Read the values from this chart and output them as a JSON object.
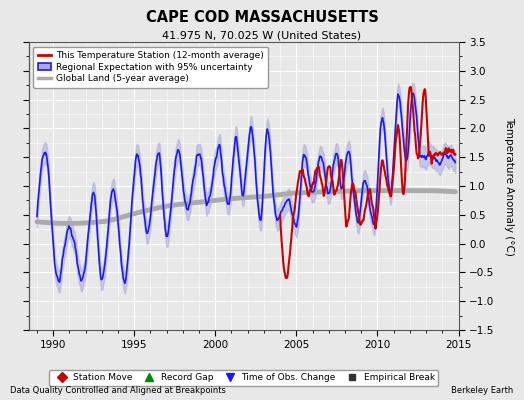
{
  "title": "CAPE COD MASSACHUSETTS",
  "subtitle": "41.975 N, 70.025 W (United States)",
  "xlabel_left": "Data Quality Controlled and Aligned at Breakpoints",
  "xlabel_right": "Berkeley Earth",
  "ylabel": "Temperature Anomaly (°C)",
  "xlim": [
    1988.5,
    2015.0
  ],
  "ylim": [
    -1.5,
    3.5
  ],
  "yticks": [
    -1.5,
    -1.0,
    -0.5,
    0.0,
    0.5,
    1.0,
    1.5,
    2.0,
    2.5,
    3.0,
    3.5
  ],
  "xticks": [
    1990,
    1995,
    2000,
    2005,
    2010,
    2015
  ],
  "background_color": "#e8e8e8",
  "plot_background": "#e8e8e8",
  "grid_color": "#ffffff",
  "red_line_color": "#cc0000",
  "blue_line_color": "#1a1aee",
  "blue_fill_color": "#aaaadd",
  "gray_line_color": "#aaaaaa",
  "legend_items": [
    "This Temperature Station (12-month average)",
    "Regional Expectation with 95% uncertainty",
    "Global Land (5-year average)"
  ],
  "bottom_legend": [
    {
      "marker": "D",
      "color": "#cc0000",
      "label": "Station Move"
    },
    {
      "marker": "^",
      "color": "#008800",
      "label": "Record Gap"
    },
    {
      "marker": "v",
      "color": "#1a1aee",
      "label": "Time of Obs. Change"
    },
    {
      "marker": "s",
      "color": "#333333",
      "label": "Empirical Break"
    }
  ],
  "blue_key_points": [
    [
      1989.0,
      0.45
    ],
    [
      1989.5,
      1.6
    ],
    [
      1990.3,
      -0.65
    ],
    [
      1991.0,
      0.3
    ],
    [
      1991.8,
      -0.65
    ],
    [
      1992.5,
      0.85
    ],
    [
      1993.0,
      -0.65
    ],
    [
      1993.7,
      1.0
    ],
    [
      1994.4,
      -0.65
    ],
    [
      1995.2,
      1.55
    ],
    [
      1995.8,
      0.2
    ],
    [
      1996.5,
      1.55
    ],
    [
      1997.0,
      0.15
    ],
    [
      1997.7,
      1.6
    ],
    [
      1998.3,
      0.6
    ],
    [
      1999.0,
      1.6
    ],
    [
      1999.5,
      0.7
    ],
    [
      2000.2,
      1.65
    ],
    [
      2000.8,
      0.7
    ],
    [
      2001.3,
      1.85
    ],
    [
      2001.7,
      0.85
    ],
    [
      2002.2,
      2.0
    ],
    [
      2002.8,
      0.45
    ],
    [
      2003.2,
      1.95
    ],
    [
      2003.8,
      0.45
    ],
    [
      2004.5,
      0.75
    ],
    [
      2005.0,
      0.3
    ],
    [
      2005.5,
      1.6
    ],
    [
      2006.0,
      0.85
    ],
    [
      2006.5,
      1.55
    ],
    [
      2007.0,
      0.9
    ],
    [
      2007.5,
      1.55
    ],
    [
      2007.8,
      0.9
    ],
    [
      2008.2,
      1.6
    ],
    [
      2008.8,
      0.35
    ],
    [
      2009.2,
      1.1
    ],
    [
      2009.8,
      0.35
    ],
    [
      2010.3,
      2.2
    ],
    [
      2010.8,
      0.9
    ],
    [
      2011.3,
      2.6
    ],
    [
      2011.8,
      1.4
    ],
    [
      2012.2,
      2.65
    ],
    [
      2012.7,
      1.5
    ],
    [
      2013.2,
      1.55
    ],
    [
      2013.8,
      1.4
    ],
    [
      2014.2,
      1.55
    ],
    [
      2014.8,
      1.4
    ]
  ],
  "red_key_points": [
    [
      2004.0,
      0.5
    ],
    [
      2004.4,
      -0.6
    ],
    [
      2004.8,
      0.45
    ],
    [
      2005.3,
      1.25
    ],
    [
      2005.8,
      0.85
    ],
    [
      2006.3,
      1.35
    ],
    [
      2006.7,
      0.9
    ],
    [
      2007.0,
      1.35
    ],
    [
      2007.4,
      0.85
    ],
    [
      2007.8,
      1.4
    ],
    [
      2008.1,
      0.3
    ],
    [
      2008.5,
      1.0
    ],
    [
      2009.0,
      0.3
    ],
    [
      2009.5,
      0.9
    ],
    [
      2009.9,
      0.3
    ],
    [
      2010.3,
      1.4
    ],
    [
      2010.8,
      0.85
    ],
    [
      2011.3,
      2.0
    ],
    [
      2011.6,
      0.9
    ],
    [
      2012.0,
      2.75
    ],
    [
      2012.5,
      1.5
    ],
    [
      2012.9,
      2.7
    ],
    [
      2013.2,
      1.5
    ],
    [
      2013.8,
      1.55
    ],
    [
      2014.2,
      1.6
    ],
    [
      2014.8,
      1.55
    ]
  ],
  "gray_key_points": [
    [
      1989.0,
      0.38
    ],
    [
      1991.0,
      0.35
    ],
    [
      1993.0,
      0.38
    ],
    [
      1995.0,
      0.52
    ],
    [
      1997.0,
      0.65
    ],
    [
      1999.0,
      0.72
    ],
    [
      2001.0,
      0.78
    ],
    [
      2003.0,
      0.82
    ],
    [
      2005.0,
      0.88
    ],
    [
      2007.0,
      0.9
    ],
    [
      2009.0,
      0.92
    ],
    [
      2011.0,
      0.92
    ],
    [
      2013.0,
      0.92
    ],
    [
      2014.8,
      0.9
    ]
  ]
}
